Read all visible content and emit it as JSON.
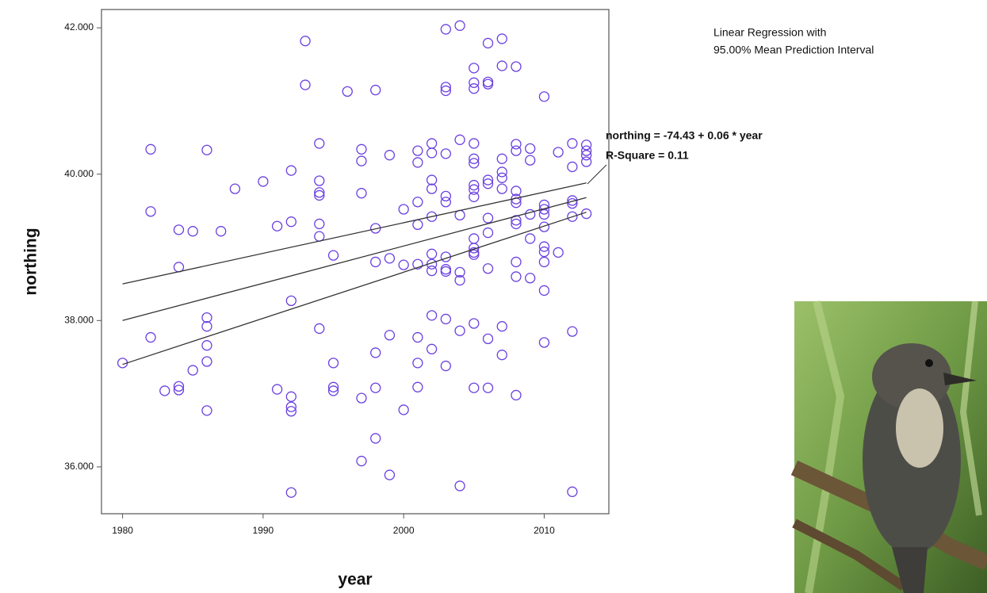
{
  "chart_data": {
    "type": "scatter",
    "xlabel": "year",
    "ylabel": "northing",
    "annotations": [
      "Linear Regression with",
      "95.00% Mean Prediction Interval",
      "northing = -74.43 + 0.06 * year",
      "R-Square = 0.11"
    ],
    "xlim": [
      1978.5,
      2014.6
    ],
    "ylim": [
      35.36,
      42.25
    ],
    "xticks": [
      1980,
      1990,
      2000,
      2010
    ],
    "yticks": [
      {
        "value": 36,
        "label": "36.000"
      },
      {
        "value": 38,
        "label": "38.000"
      },
      {
        "value": 40,
        "label": "40.000"
      },
      {
        "value": 42,
        "label": "42.000"
      }
    ],
    "x": [
      1980,
      1982,
      1982,
      1982,
      1983,
      1984,
      1984,
      1984,
      1984,
      1985,
      1985,
      1986,
      1986,
      1986,
      1986,
      1986,
      1986,
      1987,
      1988,
      1990,
      1991,
      1991,
      1992,
      1992,
      1992,
      1992,
      1992,
      1992,
      1992,
      1993,
      1993,
      1994,
      1994,
      1994,
      1994,
      1994,
      1994,
      1994,
      1995,
      1995,
      1995,
      1995,
      1996,
      1997,
      1997,
      1997,
      1997,
      1997,
      1998,
      1998,
      1998,
      1998,
      1998,
      1998,
      1999,
      1999,
      1999,
      1999,
      2000,
      2000,
      2000,
      2001,
      2001,
      2001,
      2001,
      2001,
      2001,
      2001,
      2001,
      2002,
      2002,
      2002,
      2002,
      2002,
      2002,
      2002,
      2002,
      2002,
      2002,
      2003,
      2003,
      2003,
      2003,
      2003,
      2003,
      2003,
      2003,
      2003,
      2003,
      2003,
      2004,
      2004,
      2004,
      2004,
      2004,
      2004,
      2004,
      2005,
      2005,
      2005,
      2005,
      2005,
      2005,
      2005,
      2005,
      2005,
      2005,
      2005,
      2005,
      2005,
      2005,
      2005,
      2006,
      2006,
      2006,
      2006,
      2006,
      2006,
      2006,
      2006,
      2006,
      2006,
      2007,
      2007,
      2007,
      2007,
      2007,
      2007,
      2007,
      2007,
      2008,
      2008,
      2008,
      2008,
      2008,
      2008,
      2008,
      2008,
      2008,
      2008,
      2008,
      2009,
      2009,
      2009,
      2009,
      2009,
      2010,
      2010,
      2010,
      2010,
      2010,
      2010,
      2010,
      2010,
      2010,
      2010,
      2011,
      2011,
      2012,
      2012,
      2012,
      2012,
      2012,
      2012,
      2012,
      2013,
      2013,
      2013,
      2013,
      2013
    ],
    "series": [
      {
        "color": "#6a3fe0",
        "values": [
          37.42,
          40.34,
          39.49,
          37.77,
          37.04,
          37.1,
          37.05,
          39.24,
          38.73,
          39.22,
          37.32,
          40.33,
          38.04,
          37.92,
          37.66,
          37.44,
          36.77,
          39.22,
          39.8,
          39.9,
          39.29,
          37.06,
          40.05,
          39.35,
          38.27,
          36.96,
          36.82,
          36.76,
          35.65,
          41.82,
          41.22,
          40.42,
          39.91,
          39.75,
          39.71,
          39.32,
          39.15,
          37.89,
          38.89,
          37.42,
          37.09,
          37.04,
          41.13,
          40.34,
          40.18,
          39.74,
          36.94,
          36.08,
          41.15,
          39.26,
          38.8,
          37.56,
          37.08,
          36.39,
          40.26,
          38.85,
          37.8,
          35.89,
          39.52,
          38.76,
          36.78,
          40.32,
          40.16,
          39.62,
          39.31,
          38.77,
          37.77,
          37.42,
          37.09,
          40.42,
          40.29,
          39.92,
          39.8,
          39.42,
          38.91,
          38.77,
          38.68,
          38.07,
          37.61,
          41.98,
          41.19,
          41.14,
          40.28,
          39.7,
          39.62,
          38.87,
          38.7,
          38.67,
          38.02,
          37.38,
          42.03,
          40.47,
          39.44,
          38.66,
          38.55,
          37.86,
          35.74,
          41.45,
          41.25,
          41.17,
          40.42,
          40.21,
          40.15,
          39.85,
          39.79,
          39.69,
          39.12,
          38.99,
          38.93,
          38.9,
          37.96,
          37.08,
          41.79,
          41.26,
          41.23,
          39.92,
          39.87,
          39.4,
          39.2,
          38.71,
          37.75,
          37.08,
          41.85,
          41.48,
          40.21,
          40.03,
          39.95,
          39.8,
          37.92,
          37.53,
          41.47,
          40.41,
          40.32,
          39.77,
          39.66,
          39.61,
          39.37,
          39.32,
          38.8,
          38.6,
          36.98,
          40.35,
          40.19,
          39.45,
          39.12,
          38.58,
          41.06,
          39.58,
          39.52,
          39.45,
          39.28,
          39.01,
          38.94,
          38.8,
          38.41,
          37.7,
          40.3,
          38.93,
          40.42,
          40.1,
          39.64,
          39.6,
          39.42,
          37.85,
          35.66,
          40.4,
          40.32,
          40.26,
          40.17,
          39.46
        ]
      }
    ],
    "fit_lines": [
      {
        "color": "#333333",
        "x": [
          1980,
          2013
        ],
        "values": [
          38.5,
          39.88
        ]
      },
      {
        "color": "#333333",
        "x": [
          1980,
          2013
        ],
        "values": [
          38.0,
          39.68
        ]
      },
      {
        "color": "#333333",
        "x": [
          1980,
          2013
        ],
        "values": [
          37.4,
          39.48
        ]
      }
    ]
  }
}
